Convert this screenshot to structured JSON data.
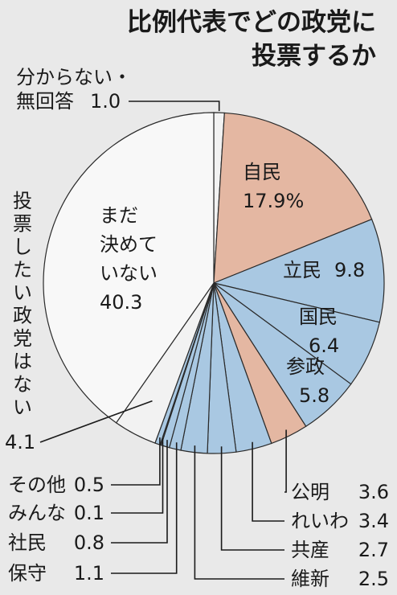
{
  "chart_data": {
    "type": "pie",
    "title_lines": [
      "比例代表でどの政党に",
      "投票するか"
    ],
    "slices": [
      {
        "key": "unknown",
        "label_lines": [
          "分からない・",
          "無回答"
        ],
        "value": 1.0,
        "value_text": "1.0",
        "color": "#f2f2f2"
      },
      {
        "key": "ldp",
        "label_lines": [
          "自民"
        ],
        "value": 17.9,
        "value_text": "17.9%",
        "color": "#e4b7a2"
      },
      {
        "key": "cdp",
        "label_lines": [
          "立民"
        ],
        "value": 9.8,
        "value_text": "9.8",
        "color": "#a9c8e2"
      },
      {
        "key": "dpfp",
        "label_lines": [
          "国民"
        ],
        "value": 6.4,
        "value_text": "6.4",
        "color": "#a9c8e2"
      },
      {
        "key": "sanseito",
        "label_lines": [
          "参政"
        ],
        "value": 5.8,
        "value_text": "5.8",
        "color": "#a9c8e2"
      },
      {
        "key": "komeito",
        "label_lines": [
          "公明"
        ],
        "value": 3.6,
        "value_text": "3.6",
        "color": "#e4b7a2"
      },
      {
        "key": "reiwa",
        "label_lines": [
          "れいわ"
        ],
        "value": 3.4,
        "value_text": "3.4",
        "color": "#a9c8e2"
      },
      {
        "key": "jcp",
        "label_lines": [
          "共産"
        ],
        "value": 2.7,
        "value_text": "2.7",
        "color": "#a9c8e2"
      },
      {
        "key": "ishin",
        "label_lines": [
          "維新"
        ],
        "value": 2.5,
        "value_text": "2.5",
        "color": "#a9c8e2"
      },
      {
        "key": "hoshu",
        "label_lines": [
          "保守"
        ],
        "value": 1.1,
        "value_text": "1.1",
        "color": "#a9c8e2"
      },
      {
        "key": "sdp",
        "label_lines": [
          "社民"
        ],
        "value": 0.8,
        "value_text": "0.8",
        "color": "#a9c8e2"
      },
      {
        "key": "minna",
        "label_lines": [
          "みんな"
        ],
        "value": 0.1,
        "value_text": "0.1",
        "color": "#a9c8e2"
      },
      {
        "key": "other",
        "label_lines": [
          "その他"
        ],
        "value": 0.5,
        "value_text": "0.5",
        "color": "#a9c8e2"
      },
      {
        "key": "none",
        "label_lines": [
          "投票したい政党はない"
        ],
        "value": 4.1,
        "value_text": "4.1",
        "color": "#f2f2f2"
      },
      {
        "key": "undecided",
        "label_lines": [
          "まだ",
          "決めて",
          "いない"
        ],
        "value": 40.3,
        "value_text": "40.3",
        "color": "#f8f8f8"
      }
    ],
    "legend": "none"
  }
}
